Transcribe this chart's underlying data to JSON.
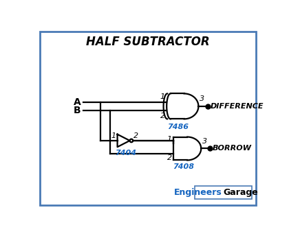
{
  "title": "HALF SUBTRACTOR",
  "bg_color": "#ffffff",
  "border_color": "#4a7ab5",
  "input_A_label": "A",
  "input_B_label": "B",
  "xor_label": "7486",
  "not_label": "7404",
  "and_label": "7408",
  "diff_label": "DIFFERENCE",
  "borrow_label": "BORROW",
  "pin1_xor": "1",
  "pin2_xor": "2",
  "pin3_xor": "3",
  "pin1_not": "1",
  "pin2_not": "2",
  "pin1_and": "1",
  "pin2_and": "2",
  "pin3_and": "3",
  "line_color": "#000000",
  "blue_color": "#1565c0",
  "dot_color": "#000000",
  "engineers_color": "#1565c0",
  "garage_color": "#000000",
  "lw": 1.6
}
